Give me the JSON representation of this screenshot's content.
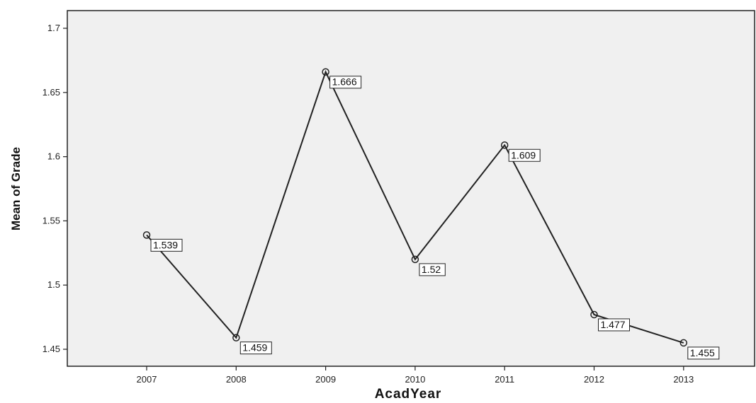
{
  "chart_data": {
    "type": "line",
    "title": "",
    "xlabel": "AcadYear",
    "ylabel": "Mean of Grade",
    "categories": [
      "2007",
      "2008",
      "2009",
      "2010",
      "2011",
      "2012",
      "2013"
    ],
    "series": [
      {
        "values": [
          1.539,
          1.459,
          1.666,
          1.52,
          1.609,
          1.477,
          1.455
        ],
        "labels": [
          "1.539",
          "1.459",
          "1.666",
          "1.52",
          "1.609",
          "1.477",
          "1.455"
        ]
      }
    ],
    "yticks": [
      "1.45",
      "1.5",
      "1.55",
      "1.6",
      "1.65",
      "1.7"
    ],
    "ylim": [
      1.44,
      1.715
    ],
    "grid": false,
    "marker": "circle",
    "background_color": "#f0f0f0",
    "line_color": "#222222"
  }
}
